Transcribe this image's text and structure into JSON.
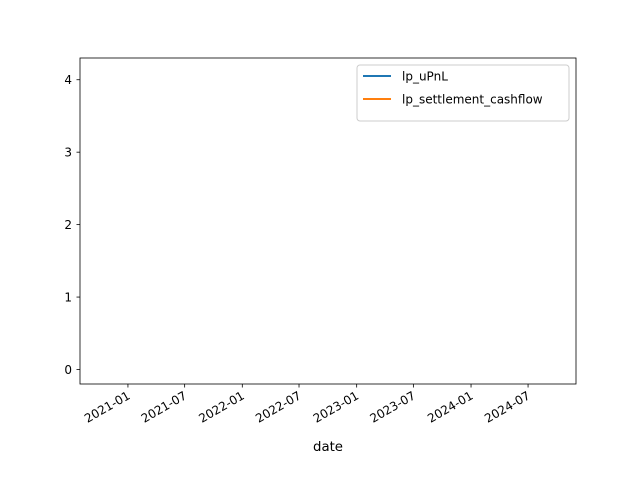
{
  "chart_data": {
    "type": "line",
    "title": "",
    "xlabel": "date",
    "ylabel": "",
    "x_axis_type": "date",
    "xlim": [
      "2020-08-01",
      "2024-12-01"
    ],
    "ylim": [
      -0.2,
      4.3
    ],
    "x_ticks": [
      "2021-01",
      "2021-07",
      "2022-01",
      "2022-07",
      "2023-01",
      "2023-07",
      "2024-01",
      "2024-07"
    ],
    "y_ticks": [
      "0",
      "1",
      "2",
      "3",
      "4"
    ],
    "grid": false,
    "legend_position": "upper-right",
    "series": [
      {
        "name": "lp_uPnL",
        "color": "#1f77b4",
        "values": []
      },
      {
        "name": "lp_settlement_cashflow",
        "color": "#ff7f0e",
        "values": []
      }
    ]
  }
}
